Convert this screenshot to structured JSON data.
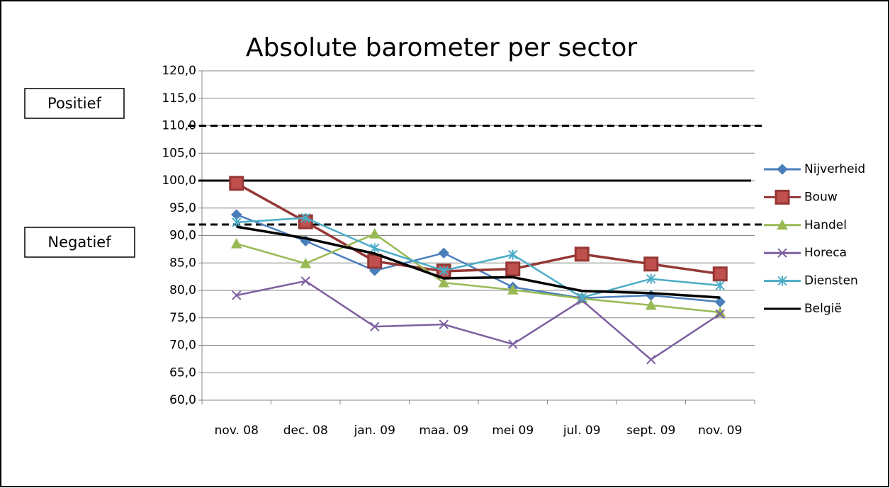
{
  "chart_data": {
    "type": "line",
    "title": "Absolute barometer per sector",
    "categories": [
      "nov. 08",
      "dec. 08",
      "jan. 09",
      "maa. 09",
      "mei 09",
      "jul. 09",
      "sept. 09",
      "nov. 09"
    ],
    "ylim": [
      60,
      120
    ],
    "yticks": [
      {
        "value": 60,
        "label": "60,0"
      },
      {
        "value": 65,
        "label": "65,0"
      },
      {
        "value": 70,
        "label": "70,0"
      },
      {
        "value": 75,
        "label": "75,0"
      },
      {
        "value": 80,
        "label": "80,0"
      },
      {
        "value": 85,
        "label": "85,0"
      },
      {
        "value": 90,
        "label": "90,0"
      },
      {
        "value": 95,
        "label": "95,0"
      },
      {
        "value": 100,
        "label": "100,0"
      },
      {
        "value": 105,
        "label": "105,0"
      },
      {
        "value": 110,
        "label": "110,0"
      },
      {
        "value": 115,
        "label": "115,0"
      },
      {
        "value": 120,
        "label": "120,0"
      }
    ],
    "grid": true,
    "legend": "right",
    "series": [
      {
        "name": "Nijverheid",
        "color": "#4a7ebb",
        "marker": "diamond",
        "values": [
          93.8,
          89.0,
          83.6,
          86.8,
          80.6,
          78.6,
          79.1,
          77.9
        ]
      },
      {
        "name": "Bouw",
        "color": "#953735",
        "marker": "square",
        "values": [
          99.5,
          92.5,
          85.3,
          83.5,
          83.9,
          86.6,
          84.8,
          83.0
        ]
      },
      {
        "name": "Handel",
        "color": "#98b954",
        "marker": "triangle",
        "values": [
          88.5,
          84.9,
          90.3,
          81.4,
          80.1,
          78.5,
          77.3,
          76.0
        ]
      },
      {
        "name": "Horeca",
        "color": "#7d5fa0",
        "marker": "x",
        "values": [
          79.1,
          81.7,
          73.4,
          73.8,
          70.2,
          78.2,
          67.4,
          75.7
        ]
      },
      {
        "name": "Diensten",
        "color": "#4bacc6",
        "marker": "star",
        "values": [
          92.4,
          93.2,
          87.7,
          83.6,
          86.5,
          78.7,
          82.1,
          80.9
        ]
      },
      {
        "name": "België",
        "color": "#000000",
        "marker": "none",
        "values": [
          91.6,
          89.5,
          86.7,
          82.2,
          82.4,
          79.9,
          79.5,
          78.7
        ]
      }
    ],
    "reference_lines": [
      {
        "value": 110,
        "style": "dashed"
      },
      {
        "value": 100,
        "style": "solid"
      },
      {
        "value": 92,
        "style": "dashed"
      }
    ],
    "annotations": [
      "Positief",
      "Negatief"
    ]
  }
}
